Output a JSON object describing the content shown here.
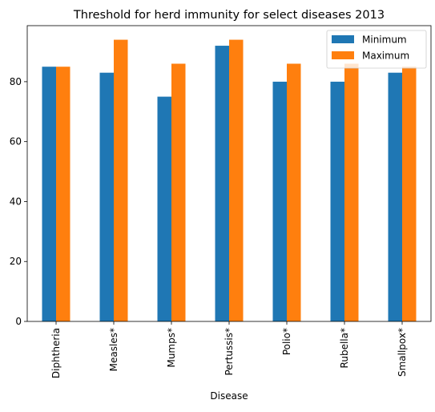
{
  "chart_data": {
    "type": "bar",
    "title": "Threshold for herd immunity for select diseases 2013",
    "xlabel": "Disease",
    "ylabel": "",
    "categories": [
      "Diphtheria",
      "Measles*",
      "Mumps*",
      "Pertussis*",
      "Polio*",
      "Rubella*",
      "Smallpox*"
    ],
    "series": [
      {
        "name": "Minimum",
        "values": [
          85,
          83,
          75,
          92,
          80,
          80,
          83
        ],
        "color": "#1f77b4"
      },
      {
        "name": "Maximum",
        "values": [
          85,
          94,
          86,
          94,
          86,
          86,
          85
        ],
        "color": "#ff7f0e"
      }
    ],
    "ylim": [
      0,
      98.7
    ],
    "yticks": [
      0,
      20,
      40,
      60,
      80
    ],
    "legend_position": "top-right",
    "grid": false
  }
}
